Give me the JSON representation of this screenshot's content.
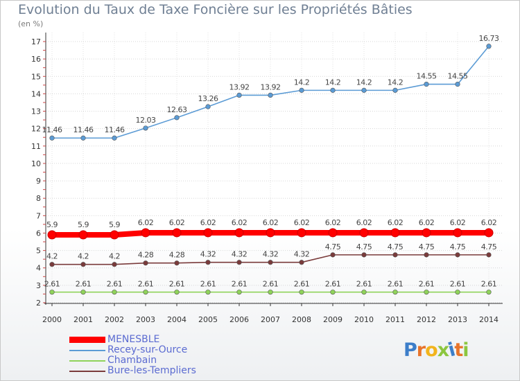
{
  "title": "Evolution du Taux de Taxe Foncière sur les Propriétés Bâties",
  "subtitle": "(en %)",
  "logo": {
    "text": "Proxiti",
    "letter_colors": [
      "#3c7ec9",
      "#e8742a",
      "#f2b41c",
      "#8cc63f",
      "#3c7ec9",
      "#e8742a",
      "#8cc63f"
    ]
  },
  "chart_data": {
    "type": "line",
    "title": "Evolution du Taux de Taxe Foncière sur les Propriétés Bâties",
    "ylabel": "(en %)",
    "xlabel": "",
    "x": [
      "2000",
      "2001",
      "2002",
      "2003",
      "2004",
      "2005",
      "2006",
      "2007",
      "2008",
      "2009",
      "2010",
      "2011",
      "2012",
      "2013",
      "2014"
    ],
    "ylim": [
      2,
      17
    ],
    "yticks": [
      "2",
      "3",
      "4",
      "5",
      "6",
      "7",
      "8",
      "9",
      "10",
      "11",
      "12",
      "13",
      "14",
      "15",
      "16",
      "17"
    ],
    "grid": true,
    "legend_position": "bottom-left",
    "series": [
      {
        "name": "MENESBLE",
        "color": "#ff0000",
        "emphasis": true,
        "values": [
          5.9,
          5.9,
          5.9,
          6.02,
          6.02,
          6.02,
          6.02,
          6.02,
          6.02,
          6.02,
          6.02,
          6.02,
          6.02,
          6.02,
          6.02
        ],
        "labels": [
          "5.9",
          "5.9",
          "5.9",
          "6.02",
          "6.02",
          "6.02",
          "6.02",
          "6.02",
          "6.02",
          "6.02",
          "6.02",
          "6.02",
          "6.02",
          "6.02",
          "6.02"
        ]
      },
      {
        "name": "Recey-sur-Ource",
        "color": "#5b9bd5",
        "emphasis": false,
        "values": [
          11.46,
          11.46,
          11.46,
          12.03,
          12.63,
          13.26,
          13.92,
          13.92,
          14.2,
          14.2,
          14.2,
          14.2,
          14.55,
          14.55,
          16.73
        ],
        "labels": [
          "11.46",
          "11.46",
          "11.46",
          "12.03",
          "12.63",
          "13.26",
          "13.92",
          "13.92",
          "14.2",
          "14.2",
          "14.2",
          "14.2",
          "14.55",
          "14.55",
          "16.73"
        ]
      },
      {
        "name": "Chambain",
        "color": "#8fd35a",
        "emphasis": false,
        "values": [
          2.61,
          2.61,
          2.61,
          2.61,
          2.61,
          2.61,
          2.61,
          2.61,
          2.61,
          2.61,
          2.61,
          2.61,
          2.61,
          2.61,
          2.61
        ],
        "labels": [
          "2.61",
          "2.61",
          "2.61",
          "2.61",
          "2.61",
          "2.61",
          "2.61",
          "2.61",
          "2.61",
          "2.61",
          "2.61",
          "2.61",
          "2.61",
          "2.61",
          "2.61"
        ]
      },
      {
        "name": "Bure-les-Templiers",
        "color": "#7a3b3b",
        "emphasis": false,
        "values": [
          4.2,
          4.2,
          4.2,
          4.28,
          4.28,
          4.32,
          4.32,
          4.32,
          4.32,
          4.75,
          4.75,
          4.75,
          4.75,
          4.75,
          4.75
        ],
        "labels": [
          "4.2",
          "4.2",
          "4.2",
          "4.28",
          "4.28",
          "4.32",
          "4.32",
          "4.32",
          "4.32",
          "4.75",
          "4.75",
          "4.75",
          "4.75",
          "4.75",
          "4.75"
        ]
      }
    ]
  }
}
